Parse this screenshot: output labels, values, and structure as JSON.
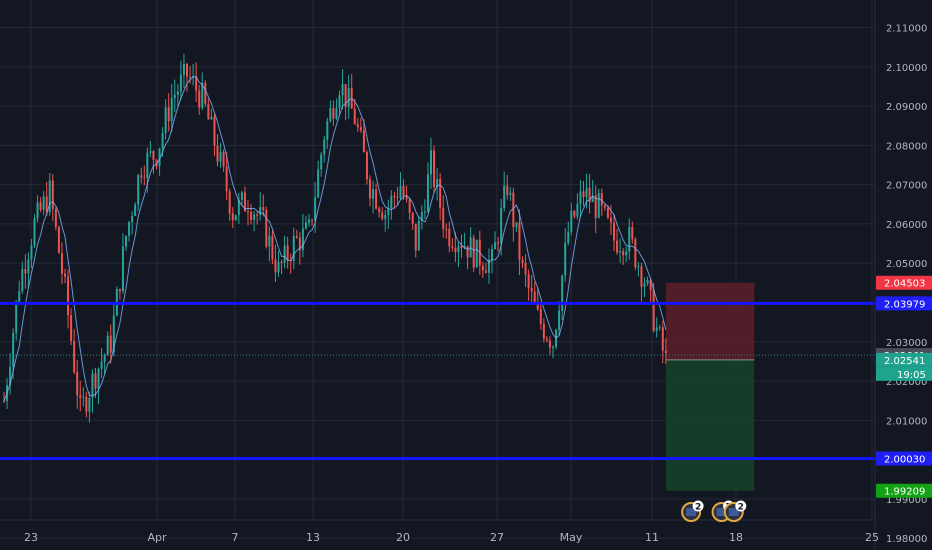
{
  "chart_data": {
    "type": "candlestick",
    "x_tick_labels": [
      "23",
      "Apr",
      "7",
      "13",
      "20",
      "27",
      "May",
      "11",
      "18",
      "25"
    ],
    "y_tick_labels": [
      "2.11000",
      "2.10000",
      "2.09000",
      "2.08000",
      "2.07000",
      "2.06000",
      "2.05000",
      "2.04000",
      "2.03000",
      "2.02000",
      "2.01000",
      "2.00000",
      "1.99000",
      "1.98000"
    ],
    "ylim": [
      1.977,
      2.117
    ],
    "grid": true,
    "price_path": [
      {
        "x": 0,
        "y": 2.015
      },
      {
        "x": 5,
        "y": 2.045
      },
      {
        "x": 10,
        "y": 2.06
      },
      {
        "x": 15,
        "y": 2.068
      },
      {
        "x": 20,
        "y": 2.043
      },
      {
        "x": 25,
        "y": 2.012
      },
      {
        "x": 30,
        "y": 2.022
      },
      {
        "x": 35,
        "y": 2.03
      },
      {
        "x": 40,
        "y": 2.057
      },
      {
        "x": 45,
        "y": 2.075
      },
      {
        "x": 50,
        "y": 2.078
      },
      {
        "x": 55,
        "y": 2.092
      },
      {
        "x": 60,
        "y": 2.098
      },
      {
        "x": 65,
        "y": 2.092
      },
      {
        "x": 70,
        "y": 2.078
      },
      {
        "x": 75,
        "y": 2.063
      },
      {
        "x": 80,
        "y": 2.066
      },
      {
        "x": 85,
        "y": 2.06
      },
      {
        "x": 90,
        "y": 2.048
      },
      {
        "x": 95,
        "y": 2.055
      },
      {
        "x": 100,
        "y": 2.058
      },
      {
        "x": 105,
        "y": 2.083
      },
      {
        "x": 110,
        "y": 2.096
      },
      {
        "x": 115,
        "y": 2.087
      },
      {
        "x": 120,
        "y": 2.07
      },
      {
        "x": 125,
        "y": 2.063
      },
      {
        "x": 130,
        "y": 2.07
      },
      {
        "x": 135,
        "y": 2.055
      },
      {
        "x": 140,
        "y": 2.075
      },
      {
        "x": 145,
        "y": 2.058
      },
      {
        "x": 150,
        "y": 2.056
      },
      {
        "x": 155,
        "y": 2.052
      },
      {
        "x": 160,
        "y": 2.05
      },
      {
        "x": 165,
        "y": 2.07
      },
      {
        "x": 170,
        "y": 2.048
      },
      {
        "x": 175,
        "y": 2.036
      },
      {
        "x": 180,
        "y": 2.03
      },
      {
        "x": 185,
        "y": 2.058
      },
      {
        "x": 190,
        "y": 2.068
      },
      {
        "x": 195,
        "y": 2.064
      },
      {
        "x": 200,
        "y": 2.056
      },
      {
        "x": 205,
        "y": 2.056
      },
      {
        "x": 210,
        "y": 2.046
      },
      {
        "x": 214,
        "y": 2.033
      },
      {
        "x": 217,
        "y": 2.025
      }
    ],
    "horizontal_lines": [
      2.03979,
      2.0003
    ],
    "last_price": 2.02661,
    "position": {
      "entry": 2.02541,
      "stop": 2.04503,
      "target": 1.99209,
      "x_start": 217,
      "x_end": 246
    },
    "event_badges": [
      {
        "x": 222,
        "count": "2"
      },
      {
        "x": 232,
        "count": "7"
      },
      {
        "x": 236,
        "count": "2"
      }
    ],
    "price_tags": [
      {
        "value": 2.04503,
        "text": "2.04503",
        "color": "#f23645"
      },
      {
        "value": 2.03979,
        "text": "2.03979",
        "color": "#1e1ef5"
      },
      {
        "value": 2.02661,
        "text": "2.02661",
        "color": "#4a4e58"
      },
      {
        "value": 2.02541,
        "text": "2.02541",
        "color": "#1fa38f"
      },
      {
        "value": 2.0003,
        "text": "2.00030",
        "color": "#1e1ef5"
      },
      {
        "value": 1.99209,
        "text": "1.99209",
        "color": "#14a314"
      }
    ],
    "countdown": "19:05",
    "colors": {
      "up": "#26a69a",
      "down": "#ef5350",
      "ma": "#7fb3ff",
      "level_line": "#1414ff",
      "stop_zone": "#5c1f29",
      "target_zone": "#16402a"
    }
  }
}
